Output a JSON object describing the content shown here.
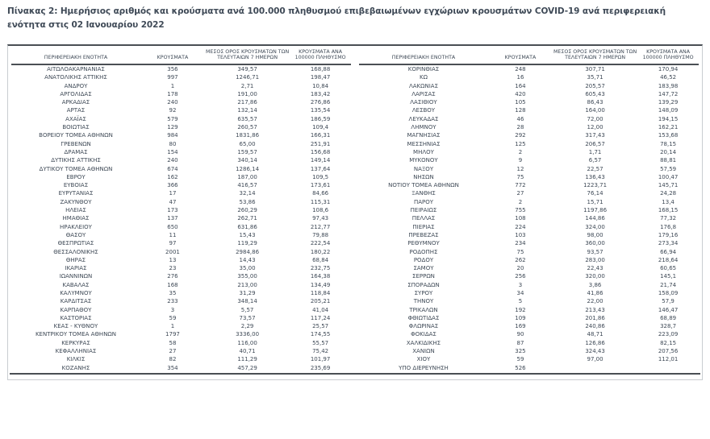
{
  "title": "Πίνακας 2: Ημερήσιος αριθμός και κρούσματα ανά 100.000 πληθυσμού επιβεβαιωμένων εγχώριων κρουσμάτων COVID-19 ανά περιφερειακή ενότητα στις 02 Ιανουαρίου 2022",
  "colors": {
    "text": "#3e4956",
    "rule_dark": "#4a4f54",
    "border_light": "#c9cdd1"
  },
  "table": {
    "headers": {
      "region": "ΠΕΡΙΦΕΡΕΙΑΚΗ ΕΝΟΤΗΤΑ",
      "cases": "ΚΡΟΥΣΜΑΤΑ",
      "avg7": "ΜΕΣΟΣ ΟΡΟΣ ΚΡΟΥΣΜΑΤΩΝ ΤΩΝ ΤΕΛΕΥΤΑΙΩΝ 7 ΗΜΕΡΩΝ",
      "per100k": "ΚΡΟΥΣΜΑΤΑ ΑΝΑ 100000 ΠΛΗΘΥΣΜΟ"
    },
    "left_rows": [
      [
        "ΑΙΤΩΛΟΑΚΑΡΝΑΝΙΑΣ",
        "356",
        "349,57",
        "168,88"
      ],
      [
        "ΑΝΑΤΟΛΙΚΗΣ ΑΤΤΙΚΗΣ",
        "997",
        "1246,71",
        "198,47"
      ],
      [
        "ΑΝΔΡΟΥ",
        "1",
        "2,71",
        "10,84"
      ],
      [
        "ΑΡΓΟΛΙΔΑΣ",
        "178",
        "191,00",
        "183,42"
      ],
      [
        "ΑΡΚΑΔΙΑΣ",
        "240",
        "217,86",
        "276,86"
      ],
      [
        "ΑΡΤΑΣ",
        "92",
        "132,14",
        "135,54"
      ],
      [
        "ΑΧΑΪΑΣ",
        "579",
        "635,57",
        "186,59"
      ],
      [
        "ΒΟΙΩΤΙΑΣ",
        "129",
        "260,57",
        "109,4"
      ],
      [
        "ΒΟΡΕΙΟΥ ΤΟΜΕΑ ΑΘΗΝΩΝ",
        "984",
        "1831,86",
        "166,31"
      ],
      [
        "ΓΡΕΒΕΝΩΝ",
        "80",
        "65,00",
        "251,91"
      ],
      [
        "ΔΡΑΜΑΣ",
        "154",
        "159,57",
        "156,68"
      ],
      [
        "ΔΥΤΙΚΗΣ ΑΤΤΙΚΗΣ",
        "240",
        "340,14",
        "149,14"
      ],
      [
        "ΔΥΤΙΚΟΥ ΤΟΜΕΑ ΑΘΗΝΩΝ",
        "674",
        "1286,14",
        "137,64"
      ],
      [
        "ΕΒΡΟΥ",
        "162",
        "187,00",
        "109,5"
      ],
      [
        "ΕΥΒΟΙΑΣ",
        "366",
        "416,57",
        "173,61"
      ],
      [
        "ΕΥΡΥΤΑΝΙΑΣ",
        "17",
        "32,14",
        "84,66"
      ],
      [
        "ΖΑΚΥΝΘΟΥ",
        "47",
        "53,86",
        "115,31"
      ],
      [
        "ΗΛΕΙΑΣ",
        "173",
        "260,29",
        "108,6"
      ],
      [
        "ΗΜΑΘΙΑΣ",
        "137",
        "262,71",
        "97,43"
      ],
      [
        "ΗΡΑΚΛΕΙΟΥ",
        "650",
        "631,86",
        "212,77"
      ],
      [
        "ΘΑΣΟΥ",
        "11",
        "15,43",
        "79,88"
      ],
      [
        "ΘΕΣΠΡΩΤΙΑΣ",
        "97",
        "119,29",
        "222,54"
      ],
      [
        "ΘΕΣΣΑΛΟΝΙΚΗΣ",
        "2001",
        "2984,86",
        "180,22"
      ],
      [
        "ΘΗΡΑΣ",
        "13",
        "14,43",
        "68,84"
      ],
      [
        "ΙΚΑΡΙΑΣ",
        "23",
        "35,00",
        "232,75"
      ],
      [
        "ΙΩΑΝΝΙΝΩΝ",
        "276",
        "355,00",
        "164,38"
      ],
      [
        "ΚΑΒΑΛΑΣ",
        "168",
        "213,00",
        "134,49"
      ],
      [
        "ΚΑΛΥΜΝΟΥ",
        "35",
        "31,29",
        "118,84"
      ],
      [
        "ΚΑΡΔΙΤΣΑΣ",
        "233",
        "348,14",
        "205,21"
      ],
      [
        "ΚΑΡΠΑΘΟΥ",
        "3",
        "5,57",
        "41,04"
      ],
      [
        "ΚΑΣΤΟΡΙΑΣ",
        "59",
        "73,57",
        "117,24"
      ],
      [
        "ΚΕΑΣ - ΚΥΘΝΟΥ",
        "1",
        "2,29",
        "25,57"
      ],
      [
        "ΚΕΝΤΡΙΚΟΥ ΤΟΜΕΑ ΑΘΗΝΩΝ",
        "1797",
        "3336,00",
        "174,55"
      ],
      [
        "ΚΕΡΚΥΡΑΣ",
        "58",
        "116,00",
        "55,57"
      ],
      [
        "ΚΕΦΑΛΛΗΝΙΑΣ",
        "27",
        "40,71",
        "75,42"
      ],
      [
        "ΚΙΛΚΙΣ",
        "82",
        "111,29",
        "101,97"
      ],
      [
        "ΚΟΖΑΝΗΣ",
        "354",
        "457,29",
        "235,69"
      ]
    ],
    "right_rows": [
      [
        "ΚΟΡΙΝΘΙΑΣ",
        "248",
        "307,71",
        "170,94"
      ],
      [
        "ΚΩ",
        "16",
        "35,71",
        "46,52"
      ],
      [
        "ΛΑΚΩΝΙΑΣ",
        "164",
        "205,57",
        "183,98"
      ],
      [
        "ΛΑΡΙΣΑΣ",
        "420",
        "605,43",
        "147,72"
      ],
      [
        "ΛΑΣΙΘΙΟΥ",
        "105",
        "86,43",
        "139,29"
      ],
      [
        "ΛΕΣΒΟΥ",
        "128",
        "164,00",
        "148,09"
      ],
      [
        "ΛΕΥΚΑΔΑΣ",
        "46",
        "72,00",
        "194,15"
      ],
      [
        "ΛΗΜΝΟΥ",
        "28",
        "12,00",
        "162,21"
      ],
      [
        "ΜΑΓΝΗΣΙΑΣ",
        "292",
        "317,43",
        "153,68"
      ],
      [
        "ΜΕΣΣΗΝΙΑΣ",
        "125",
        "206,57",
        "78,15"
      ],
      [
        "ΜΗΛΟΥ",
        "2",
        "1,71",
        "20,14"
      ],
      [
        "ΜΥΚΟΝΟΥ",
        "9",
        "6,57",
        "88,81"
      ],
      [
        "ΝΑΞΟΥ",
        "12",
        "22,57",
        "57,59"
      ],
      [
        "ΝΗΣΩΝ",
        "75",
        "136,43",
        "100,47"
      ],
      [
        "ΝΟΤΙΟΥ ΤΟΜΕΑ ΑΘΗΝΩΝ",
        "772",
        "1223,71",
        "145,71"
      ],
      [
        "ΞΑΝΘΗΣ",
        "27",
        "76,14",
        "24,28"
      ],
      [
        "ΠΑΡΟΥ",
        "2",
        "15,71",
        "13,4"
      ],
      [
        "ΠΕΙΡΑΙΩΣ",
        "755",
        "1197,86",
        "168,15"
      ],
      [
        "ΠΕΛΛΑΣ",
        "108",
        "144,86",
        "77,32"
      ],
      [
        "ΠΙΕΡΙΑΣ",
        "224",
        "324,00",
        "176,8"
      ],
      [
        "ΠΡΕΒΕΖΑΣ",
        "103",
        "98,00",
        "179,16"
      ],
      [
        "ΡΕΘΥΜΝΟΥ",
        "234",
        "360,00",
        "273,34"
      ],
      [
        "ΡΟΔΟΠΗΣ",
        "75",
        "93,57",
        "66,94"
      ],
      [
        "ΡΟΔΟΥ",
        "262",
        "283,00",
        "218,64"
      ],
      [
        "ΣΑΜΟΥ",
        "20",
        "22,43",
        "60,65"
      ],
      [
        "ΣΕΡΡΩΝ",
        "256",
        "320,00",
        "145,1"
      ],
      [
        "ΣΠΟΡΑΔΩΝ",
        "3",
        "3,86",
        "21,74"
      ],
      [
        "ΣΥΡΟΥ",
        "34",
        "41,86",
        "158,09"
      ],
      [
        "ΤΗΝΟΥ",
        "5",
        "22,00",
        "57,9"
      ],
      [
        "ΤΡΙΚΑΛΩΝ",
        "192",
        "213,43",
        "146,47"
      ],
      [
        "ΦΘΙΩΤΙΔΑΣ",
        "109",
        "201,86",
        "68,89"
      ],
      [
        "ΦΛΩΡΙΝΑΣ",
        "169",
        "240,86",
        "328,7"
      ],
      [
        "ΦΟΚΙΔΑΣ",
        "90",
        "48,71",
        "223,09"
      ],
      [
        "ΧΑΛΚΙΔΙΚΗΣ",
        "87",
        "126,86",
        "82,15"
      ],
      [
        "ΧΑΝΙΩΝ",
        "325",
        "324,43",
        "207,56"
      ],
      [
        "ΧΙΟΥ",
        "59",
        "97,00",
        "112,01"
      ],
      [
        "ΥΠΟ ΔΙΕΡΕΥΝΗΣΗ",
        "526",
        "",
        ""
      ]
    ]
  }
}
